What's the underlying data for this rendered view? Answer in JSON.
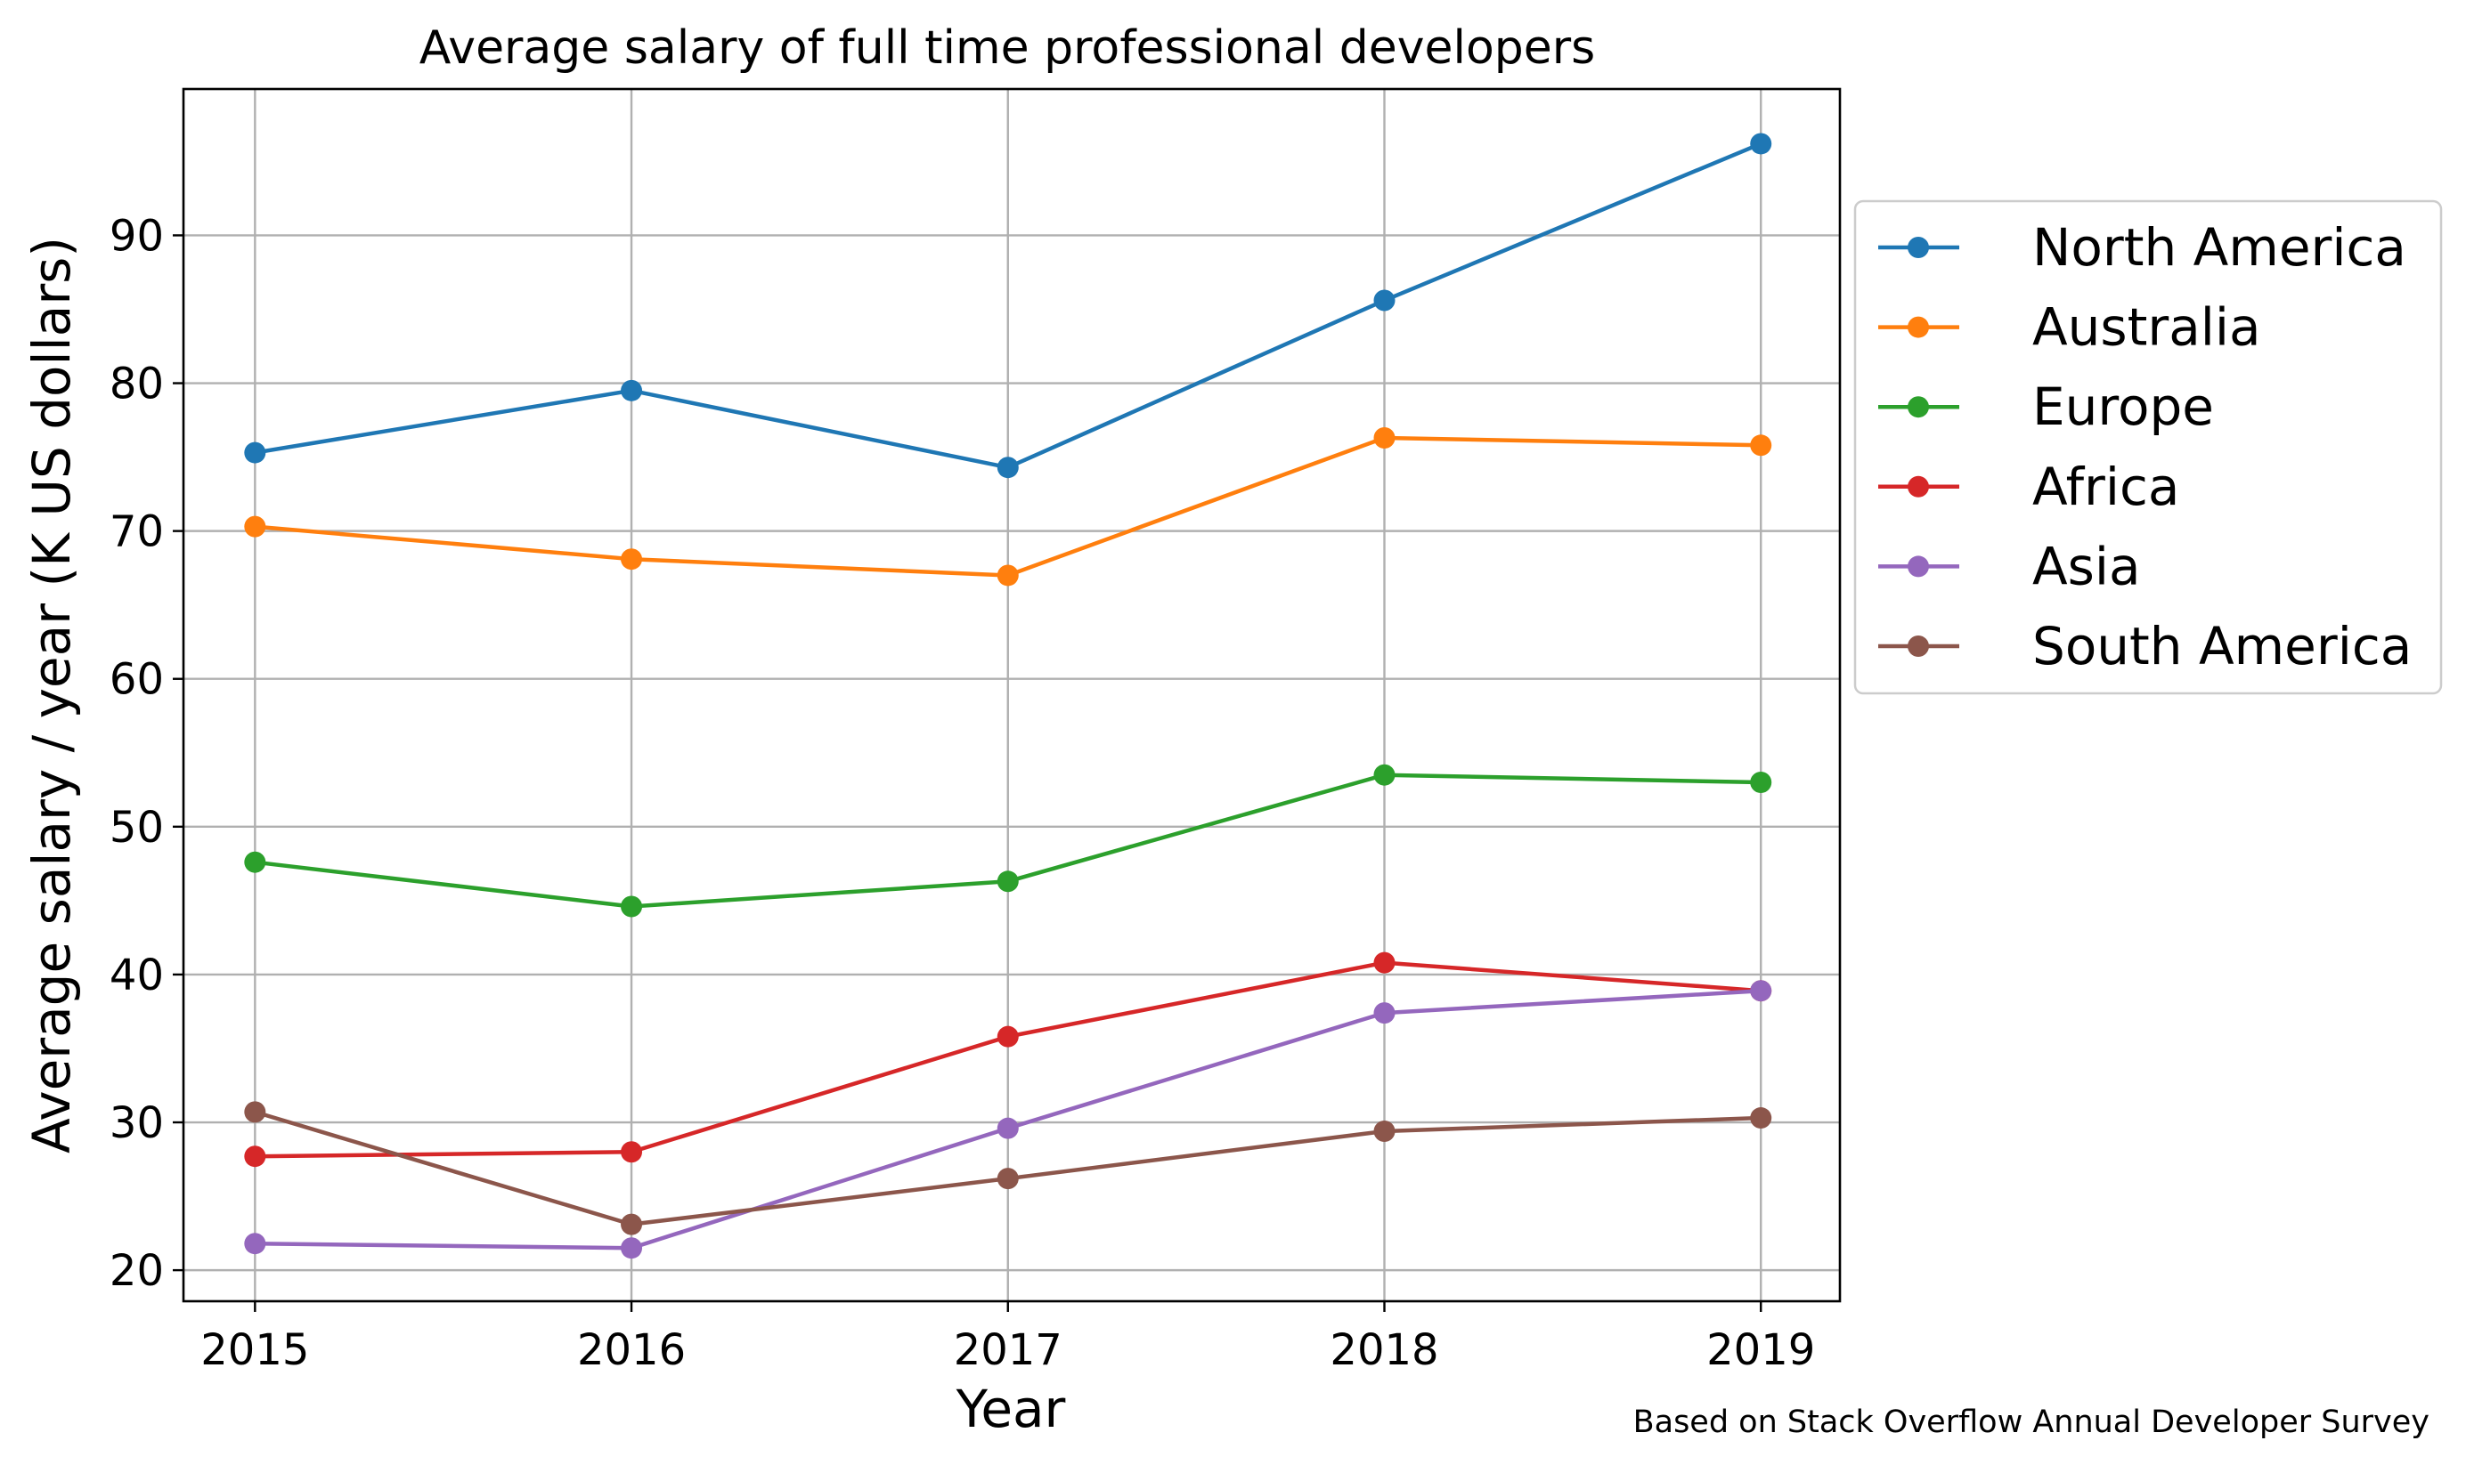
{
  "chart_data": {
    "type": "line",
    "title": "Average salary of full time professional developers",
    "xlabel": "Year",
    "ylabel": "Average salary / year (K US dollars)",
    "x": [
      2015,
      2016,
      2017,
      2018,
      2019
    ],
    "x_tick_labels": [
      "2015",
      "2016",
      "2017",
      "2018",
      "2019"
    ],
    "y_ticks": [
      20,
      30,
      40,
      50,
      60,
      70,
      80,
      90
    ],
    "y_tick_labels": [
      "20",
      "30",
      "40",
      "50",
      "60",
      "70",
      "80",
      "90"
    ],
    "xlim": [
      2014.81,
      2019.21
    ],
    "ylim": [
      17.9,
      99.9
    ],
    "grid": true,
    "legend_position": "outside right, top",
    "series": [
      {
        "name": "North America",
        "color": "#1f77b4",
        "values": [
          75.3,
          79.5,
          74.3,
          85.6,
          96.2
        ]
      },
      {
        "name": "Australia",
        "color": "#ff7f0e",
        "values": [
          70.3,
          68.1,
          67.0,
          76.3,
          75.8
        ]
      },
      {
        "name": "Europe",
        "color": "#2ca02c",
        "values": [
          47.6,
          44.6,
          46.3,
          53.5,
          53.0
        ]
      },
      {
        "name": "Africa",
        "color": "#d62728",
        "values": [
          27.7,
          28.0,
          35.8,
          40.8,
          38.9
        ]
      },
      {
        "name": "Asia",
        "color": "#9467bd",
        "values": [
          21.8,
          21.5,
          29.6,
          37.4,
          38.9
        ]
      },
      {
        "name": "South America",
        "color": "#8c564b",
        "values": [
          30.7,
          23.1,
          26.2,
          29.4,
          30.3
        ]
      }
    ],
    "annotation": "Based on Stack Overflow Annual Developer Survey"
  }
}
